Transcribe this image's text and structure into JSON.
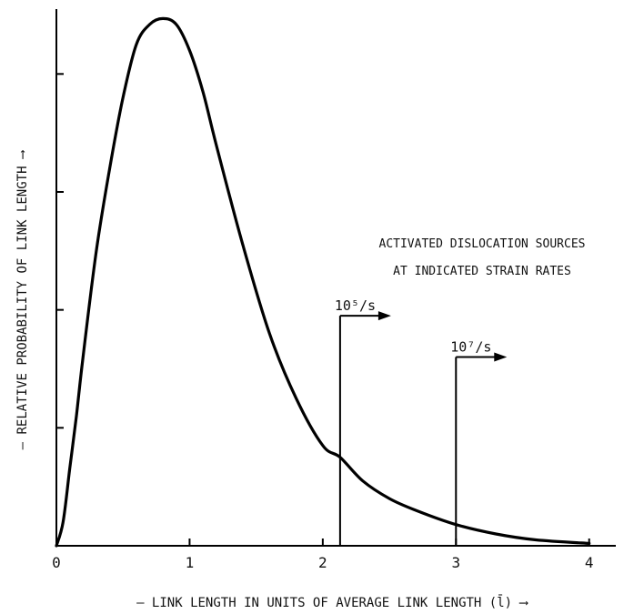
{
  "chart_data": {
    "type": "line",
    "title": "",
    "xlabel": "— LINK LENGTH IN UNITS OF AVERAGE LINK LENGTH (l̄) ⟶",
    "ylabel": "— RELATIVE PROBABILITY OF LINK LENGTH ⟶",
    "xlim": [
      0,
      4.2
    ],
    "ylim": [
      0,
      4.55
    ],
    "x_ticks": [
      0,
      1,
      2,
      3,
      4
    ],
    "x_tick_labels": [
      "0",
      "1",
      "2",
      "3",
      "4"
    ],
    "y_ticks": [
      1,
      2,
      3,
      4
    ],
    "y_tick_labels": [
      "",
      "",
      "",
      ""
    ],
    "grid": false,
    "series": [
      {
        "name": "",
        "x": [
          0,
          0.05,
          0.1,
          0.15,
          0.2,
          0.3,
          0.4,
          0.5,
          0.6,
          0.7,
          0.8,
          0.9,
          1.0,
          1.1,
          1.2,
          1.4,
          1.6,
          1.8,
          2.0,
          2.13,
          2.3,
          2.5,
          2.7,
          3.0,
          3.3,
          3.6,
          4.0
        ],
        "y": [
          0,
          0.2,
          0.65,
          1.1,
          1.6,
          2.5,
          3.2,
          3.8,
          4.25,
          4.42,
          4.47,
          4.42,
          4.2,
          3.85,
          3.4,
          2.55,
          1.8,
          1.25,
          0.85,
          0.75,
          0.55,
          0.4,
          0.3,
          0.18,
          0.1,
          0.05,
          0.02
        ]
      }
    ],
    "annotations": {
      "heading_line1": "ACTIVATED DISLOCATION SOURCES",
      "heading_line2": "AT INDICATED STRAIN RATES",
      "markers": [
        {
          "x": 2.13,
          "height": 1.95,
          "label": "10⁵/s"
        },
        {
          "x": 3.0,
          "height": 1.6,
          "label": "10⁷/s"
        }
      ]
    }
  }
}
